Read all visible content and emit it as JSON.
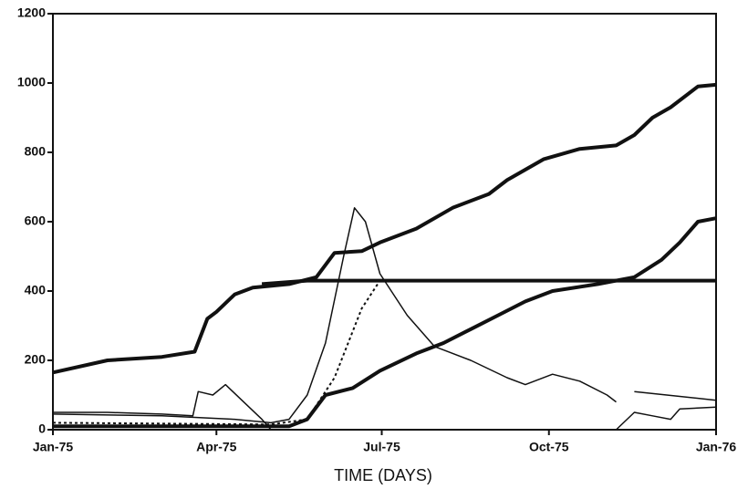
{
  "chart_data": {
    "type": "line",
    "x_label": "TIME (DAYS)",
    "xlim": [
      0,
      365
    ],
    "xticks": [
      {
        "value": 0,
        "label": "Jan-75"
      },
      {
        "value": 90,
        "label": "Apr-75"
      },
      {
        "value": 181,
        "label": "Jul-75"
      },
      {
        "value": 273,
        "label": "Oct-75"
      },
      {
        "value": 365,
        "label": "Jan-76"
      }
    ],
    "ylim": [
      0,
      1200
    ],
    "yticks": [
      0,
      200,
      400,
      600,
      800,
      1000,
      1200
    ],
    "series": [
      {
        "color": "#111",
        "width": 4,
        "x": [
          0,
          30,
          60,
          78,
          85,
          90,
          100,
          110,
          130,
          145,
          155,
          170,
          180,
          200,
          220,
          240,
          250,
          270,
          290,
          310,
          320,
          330,
          340,
          355,
          365
        ],
        "values": [
          165,
          200,
          210,
          225,
          320,
          340,
          390,
          410,
          420,
          440,
          510,
          515,
          540,
          580,
          640,
          680,
          720,
          780,
          810,
          820,
          850,
          900,
          930,
          990,
          995
        ]
      },
      {
        "color": "#111",
        "width": 4,
        "x": [
          115,
          140,
          365
        ],
        "values": [
          420,
          430,
          430
        ]
      },
      {
        "color": "#111",
        "width": 4,
        "x": [
          0,
          130,
          140,
          150,
          165,
          180,
          200,
          215,
          230,
          245,
          260,
          275,
          300,
          320,
          335,
          345,
          355,
          365
        ],
        "values": [
          10,
          10,
          30,
          100,
          120,
          170,
          220,
          250,
          290,
          330,
          370,
          400,
          420,
          440,
          490,
          540,
          600,
          610
        ]
      },
      {
        "color": "#111",
        "width": 1.5,
        "x": [
          0,
          60,
          100,
          120,
          130,
          140,
          150,
          160,
          166,
          172,
          180,
          195,
          210,
          215,
          230,
          250,
          260,
          275,
          290,
          305,
          310,
          null,
          320,
          365
        ],
        "values": [
          45,
          40,
          30,
          20,
          30,
          100,
          250,
          500,
          640,
          600,
          450,
          330,
          240,
          230,
          200,
          150,
          130,
          160,
          140,
          100,
          80,
          null,
          110,
          85
        ]
      },
      {
        "color": "#111",
        "width": 2,
        "dash": "3 3",
        "x": [
          0,
          120,
          140,
          155,
          170,
          180
        ],
        "values": [
          20,
          15,
          30,
          150,
          350,
          430
        ]
      },
      {
        "color": "#111",
        "width": 1.5,
        "x": [
          0,
          30,
          60,
          77,
          80,
          88,
          95,
          105,
          115,
          120,
          null,
          310,
          320,
          330,
          340,
          345,
          365
        ],
        "values": [
          50,
          50,
          45,
          40,
          110,
          100,
          130,
          80,
          30,
          0,
          null,
          0,
          50,
          40,
          30,
          60,
          65
        ]
      }
    ]
  }
}
